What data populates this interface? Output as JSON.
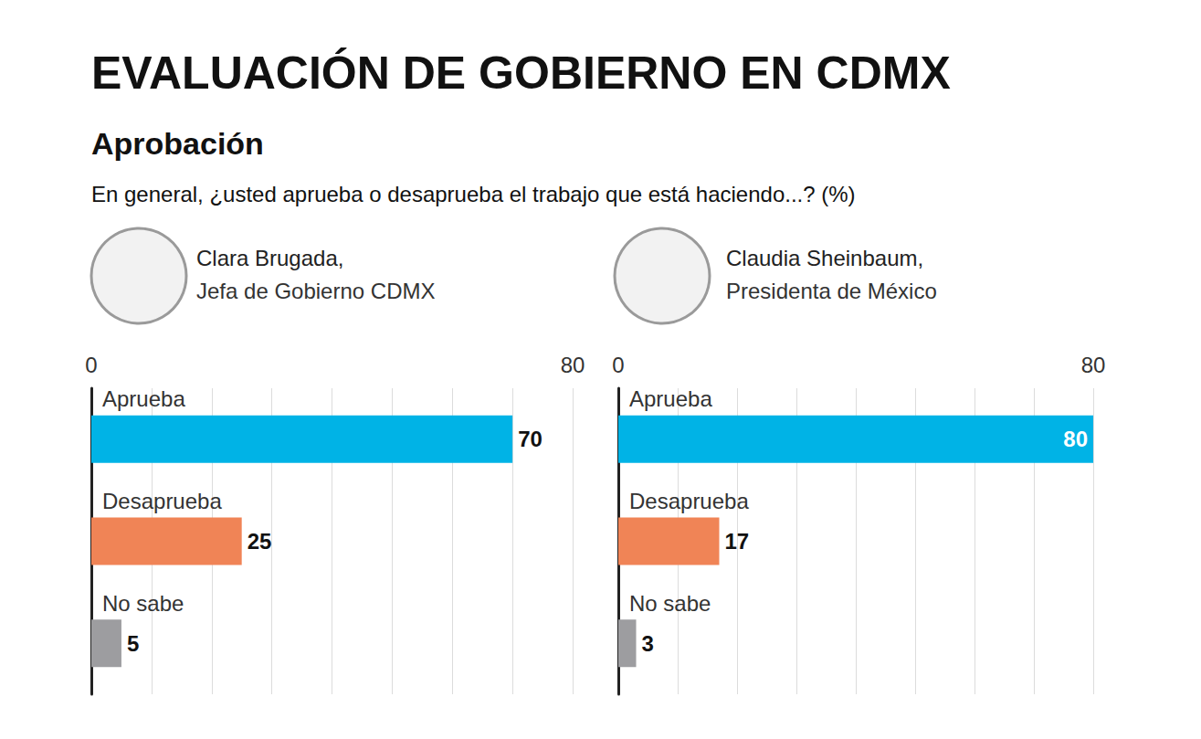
{
  "title": "EVALUACIÓN DE GOBIERNO EN CDMX",
  "subtitle": "Aprobación",
  "question": "En general, ¿usted aprueba o desaprueba el trabajo que está haciendo...? (%)",
  "chart_data": [
    {
      "type": "bar",
      "orientation": "horizontal",
      "title": "Clara Brugada,",
      "subtitle": "Jefa de Gobierno CDMX",
      "categories": [
        "Aprueba",
        "Desaprueba",
        "No sabe"
      ],
      "values": [
        70,
        25,
        5
      ],
      "colors": [
        "#00b3e6",
        "#f08456",
        "#9d9da0"
      ],
      "xlim": [
        0,
        80
      ],
      "xticks": [
        0,
        {
          "value": 10,
          "label": null
        },
        {
          "value": 20,
          "label": null
        },
        {
          "value": 30,
          "label": null
        },
        {
          "value": 40,
          "label": null
        },
        {
          "value": 50,
          "label": null
        },
        {
          "value": 60,
          "label": null
        },
        {
          "value": 70,
          "label": null
        },
        80
      ],
      "grid": true,
      "data_labels": true
    },
    {
      "type": "bar",
      "orientation": "horizontal",
      "title": "Claudia Sheinbaum,",
      "subtitle": "Presidenta de México",
      "categories": [
        "Aprueba",
        "Desaprueba",
        "No sabe"
      ],
      "values": [
        80,
        17,
        3
      ],
      "colors": [
        "#00b3e6",
        "#f08456",
        "#9d9da0"
      ],
      "xlim": [
        0,
        80
      ],
      "xticks": [
        0,
        {
          "value": 10,
          "label": null
        },
        {
          "value": 20,
          "label": null
        },
        {
          "value": 30,
          "label": null
        },
        {
          "value": 40,
          "label": null
        },
        {
          "value": 50,
          "label": null
        },
        {
          "value": 60,
          "label": null
        },
        {
          "value": 70,
          "label": null
        },
        80
      ],
      "grid": true,
      "data_labels": true
    }
  ]
}
